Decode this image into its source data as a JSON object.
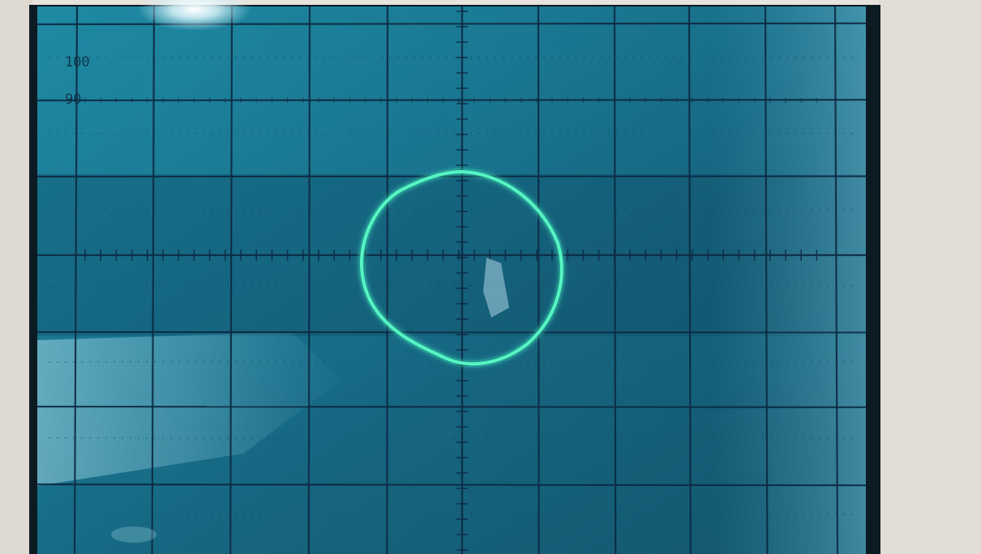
{
  "screen": {
    "scale_marks": [
      "100",
      "90"
    ]
  },
  "trace": {
    "shape": "closed loop (Lissajous ellipse)",
    "color": "#56f5c3"
  },
  "graticule": {
    "color": "#0d2a44",
    "phosphor_background": "#1c7f98",
    "glare_color": "#d8f4ff"
  },
  "bezel": {
    "frame_color": "#0c1a22",
    "wall_color": "#e7e3dd"
  }
}
